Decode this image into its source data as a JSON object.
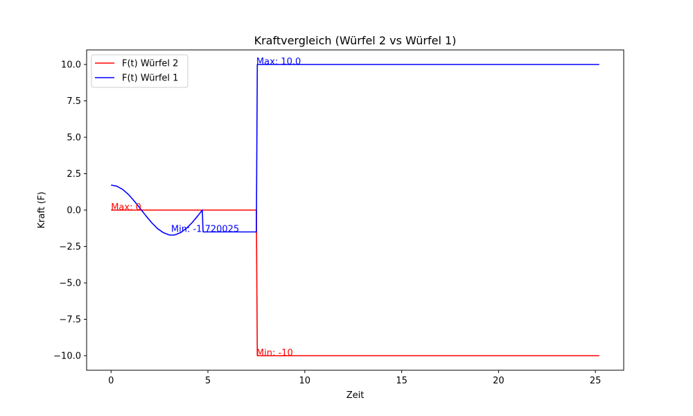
{
  "chart_data": {
    "type": "line",
    "title": "Kraftvergleich (Würfel 2 vs Würfel 1)",
    "xlabel": "Zeit",
    "ylabel": "Kraft (F)",
    "xlim": [
      -1.26,
      26.46
    ],
    "ylim": [
      -11.0,
      11.0
    ],
    "xticks": [
      0,
      5,
      10,
      15,
      20,
      25
    ],
    "xtick_labels": [
      "0",
      "5",
      "10",
      "15",
      "20",
      "25"
    ],
    "yticks": [
      10.0,
      7.5,
      5.0,
      2.5,
      0.0,
      -2.5,
      -5.0,
      -7.5,
      -10.0
    ],
    "ytick_labels": [
      "10.0",
      "7.5",
      "5.0",
      "2.5",
      "0.0",
      "−2.5",
      "−5.0",
      "−7.5",
      "−10.0"
    ],
    "grid": false,
    "legend_position": "top-left",
    "series": [
      {
        "name": "F(t) Würfel 2",
        "color": "#ff0000",
        "x": [
          0,
          7.5,
          7.55,
          25.2
        ],
        "y": [
          0,
          0,
          -10,
          -10
        ]
      },
      {
        "name": "F(t) Würfel 1",
        "color": "#0000ff",
        "x": [
          0,
          0.3,
          0.6,
          0.9,
          1.2,
          1.5,
          1.8,
          2.1,
          2.4,
          2.7,
          3.0,
          3.14,
          3.3,
          3.6,
          3.9,
          4.2,
          4.5,
          4.71,
          4.75,
          7.5,
          7.55,
          25.2
        ],
        "y": [
          1.72,
          1.64,
          1.42,
          1.07,
          0.62,
          0.12,
          -0.39,
          -0.87,
          -1.27,
          -1.55,
          -1.71,
          -1.72,
          -1.7,
          -1.54,
          -1.24,
          -0.84,
          -0.36,
          0.0,
          -1.5,
          -1.5,
          10.0,
          10.0
        ]
      }
    ],
    "annotations": [
      {
        "text": "Max: 0",
        "x": 0.0,
        "y": 0.0,
        "color": "#ff0000"
      },
      {
        "text": "Min: -1.720025",
        "x": 3.1,
        "y": -1.5,
        "color": "#0000ff"
      },
      {
        "text": "Max: 10.0",
        "x": 7.5,
        "y": 10.0,
        "color": "#0000ff"
      },
      {
        "text": "Min: -10",
        "x": 7.5,
        "y": -10.0,
        "color": "#ff0000"
      }
    ]
  }
}
